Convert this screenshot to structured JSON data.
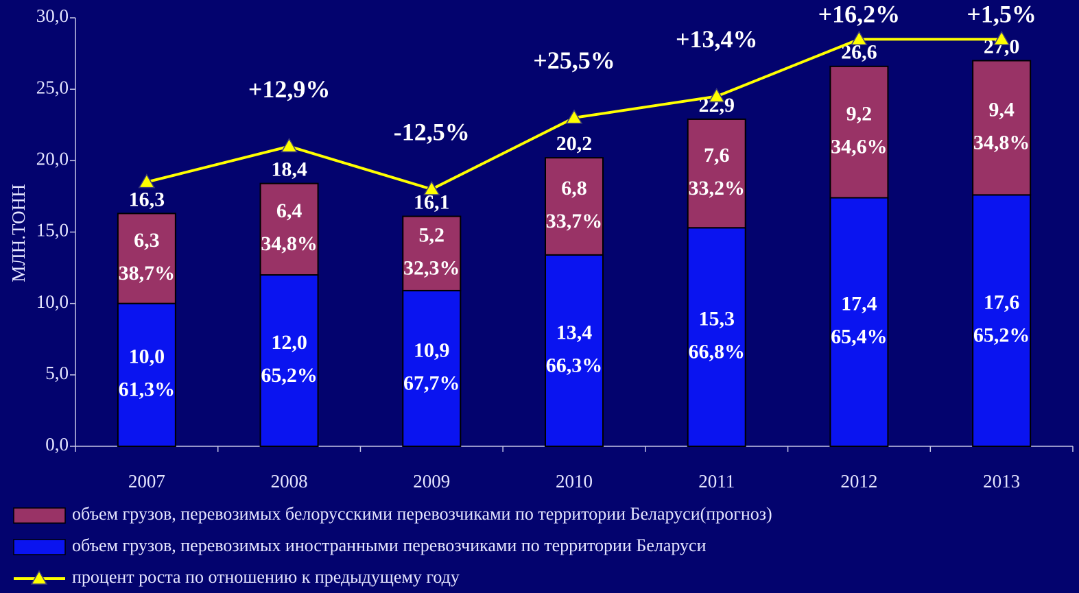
{
  "chart_data": {
    "type": "bar",
    "stacked": true,
    "y_label": "МЛН.ТОНН",
    "categories": [
      "2007",
      "2008",
      "2009",
      "2010",
      "2011",
      "2012",
      "2013"
    ],
    "ylim": [
      0,
      30
    ],
    "yticks": [
      {
        "value": 0,
        "label": "0,0"
      },
      {
        "value": 5,
        "label": "5,0"
      },
      {
        "value": 10,
        "label": "10,0"
      },
      {
        "value": 15,
        "label": "15,0"
      },
      {
        "value": 20,
        "label": "20,0"
      },
      {
        "value": 25,
        "label": "25,0"
      },
      {
        "value": 30,
        "label": "30,0"
      }
    ],
    "series": [
      {
        "name": "объем грузов, перевозимых иностранными перевозчиками по территории Беларуси",
        "color": "#0a14f0",
        "values": [
          10.0,
          12.0,
          10.9,
          13.4,
          15.3,
          17.4,
          17.6
        ],
        "value_labels": [
          "10,0",
          "12,0",
          "10,9",
          "13,4",
          "15,3",
          "17,4",
          "17,6"
        ],
        "share_labels": [
          "61,3%",
          "65,2%",
          "67,7%",
          "66,3%",
          "66,8%",
          "65,4%",
          "65,2%"
        ]
      },
      {
        "name": "объем грузов, перевозимых белорусскими перевозчиками по территории Беларуси(прогноз)",
        "color": "#993366",
        "values": [
          6.3,
          6.4,
          5.2,
          6.8,
          7.6,
          9.2,
          9.4
        ],
        "value_labels": [
          "6,3",
          "6,4",
          "5,2",
          "6,8",
          "7,6",
          "9,2",
          "9,4"
        ],
        "share_labels": [
          "38,7%",
          "34,8%",
          "32,3%",
          "33,7%",
          "33,2%",
          "34,6%",
          "34,8%"
        ]
      },
      {
        "name": "процент роста по отношению к предыдущему году",
        "type": "line",
        "color": "#ffff00",
        "values": [
          18.5,
          21.0,
          18.0,
          23.0,
          24.5,
          28.5,
          28.5
        ],
        "annotations": [
          null,
          "+12,9%",
          "-12,5%",
          "+25,5%",
          "+13,4%",
          "+16,2%",
          "+1,5%"
        ]
      }
    ],
    "total_labels": [
      "16,3",
      "18,4",
      "16,1",
      "20,2",
      "22,9",
      "26,6",
      "27,0"
    ],
    "legend_order": [
      1,
      0,
      2
    ]
  }
}
